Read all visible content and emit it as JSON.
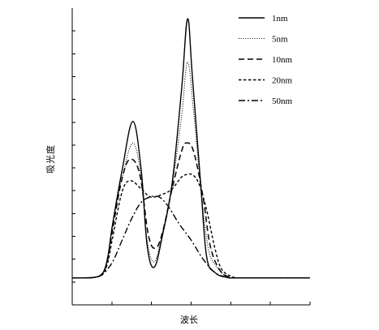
{
  "chart_data": {
    "type": "line",
    "title": "",
    "xlabel": "波长",
    "ylabel": "吸光度",
    "x_ticks_labeled": false,
    "y_ticks_labeled": false,
    "xlim": [
      0,
      1
    ],
    "ylim": [
      -0.1,
      1
    ],
    "grid": false,
    "legend_position": "top-right",
    "series": [
      {
        "name": "1nm",
        "style": "solid",
        "points": [
          [
            0.0,
            0.0
          ],
          [
            0.05,
            0.0
          ],
          [
            0.1,
            0.003
          ],
          [
            0.13,
            0.02
          ],
          [
            0.15,
            0.08
          ],
          [
            0.17,
            0.2
          ],
          [
            0.21,
            0.4
          ],
          [
            0.255,
            0.58
          ],
          [
            0.29,
            0.4
          ],
          [
            0.315,
            0.12
          ],
          [
            0.345,
            0.04
          ],
          [
            0.38,
            0.16
          ],
          [
            0.42,
            0.35
          ],
          [
            0.46,
            0.7
          ],
          [
            0.485,
            0.96
          ],
          [
            0.505,
            0.75
          ],
          [
            0.54,
            0.35
          ],
          [
            0.565,
            0.08
          ],
          [
            0.6,
            0.02
          ],
          [
            0.65,
            0.002
          ],
          [
            0.7,
            0.0
          ],
          [
            1.0,
            0.0
          ]
        ]
      },
      {
        "name": "5nm",
        "style": "dotted",
        "points": [
          [
            0.0,
            0.0
          ],
          [
            0.05,
            0.0
          ],
          [
            0.1,
            0.003
          ],
          [
            0.13,
            0.02
          ],
          [
            0.15,
            0.08
          ],
          [
            0.17,
            0.2
          ],
          [
            0.21,
            0.37
          ],
          [
            0.255,
            0.5
          ],
          [
            0.29,
            0.37
          ],
          [
            0.315,
            0.14
          ],
          [
            0.345,
            0.06
          ],
          [
            0.38,
            0.17
          ],
          [
            0.42,
            0.34
          ],
          [
            0.46,
            0.6
          ],
          [
            0.485,
            0.8
          ],
          [
            0.51,
            0.62
          ],
          [
            0.54,
            0.34
          ],
          [
            0.57,
            0.12
          ],
          [
            0.6,
            0.05
          ],
          [
            0.65,
            0.005
          ],
          [
            0.7,
            0.0
          ],
          [
            1.0,
            0.0
          ]
        ]
      },
      {
        "name": "10nm",
        "style": "dashed",
        "points": [
          [
            0.0,
            0.0
          ],
          [
            0.05,
            0.0
          ],
          [
            0.1,
            0.003
          ],
          [
            0.13,
            0.02
          ],
          [
            0.15,
            0.07
          ],
          [
            0.17,
            0.18
          ],
          [
            0.21,
            0.37
          ],
          [
            0.245,
            0.44
          ],
          [
            0.285,
            0.38
          ],
          [
            0.32,
            0.16
          ],
          [
            0.35,
            0.11
          ],
          [
            0.38,
            0.17
          ],
          [
            0.42,
            0.33
          ],
          [
            0.46,
            0.47
          ],
          [
            0.48,
            0.5
          ],
          [
            0.51,
            0.47
          ],
          [
            0.55,
            0.3
          ],
          [
            0.58,
            0.12
          ],
          [
            0.62,
            0.03
          ],
          [
            0.66,
            0.003
          ],
          [
            0.7,
            0.0
          ],
          [
            1.0,
            0.0
          ]
        ]
      },
      {
        "name": "20nm",
        "style": "short-dashed",
        "points": [
          [
            0.0,
            0.0
          ],
          [
            0.05,
            0.0
          ],
          [
            0.1,
            0.003
          ],
          [
            0.13,
            0.015
          ],
          [
            0.15,
            0.06
          ],
          [
            0.17,
            0.15
          ],
          [
            0.21,
            0.32
          ],
          [
            0.245,
            0.36
          ],
          [
            0.29,
            0.33
          ],
          [
            0.33,
            0.3
          ],
          [
            0.38,
            0.31
          ],
          [
            0.42,
            0.33
          ],
          [
            0.47,
            0.38
          ],
          [
            0.52,
            0.37
          ],
          [
            0.56,
            0.27
          ],
          [
            0.6,
            0.11
          ],
          [
            0.63,
            0.03
          ],
          [
            0.68,
            0.002
          ],
          [
            0.7,
            0.0
          ],
          [
            1.0,
            0.0
          ]
        ]
      },
      {
        "name": "50nm",
        "style": "dash-dot",
        "points": [
          [
            0.0,
            0.0
          ],
          [
            0.05,
            0.0
          ],
          [
            0.1,
            0.003
          ],
          [
            0.13,
            0.015
          ],
          [
            0.17,
            0.06
          ],
          [
            0.21,
            0.14
          ],
          [
            0.25,
            0.22
          ],
          [
            0.29,
            0.28
          ],
          [
            0.33,
            0.3
          ],
          [
            0.365,
            0.3
          ],
          [
            0.4,
            0.27
          ],
          [
            0.45,
            0.2
          ],
          [
            0.5,
            0.14
          ],
          [
            0.55,
            0.07
          ],
          [
            0.6,
            0.02
          ],
          [
            0.65,
            0.003
          ],
          [
            0.7,
            0.0
          ],
          [
            1.0,
            0.0
          ]
        ]
      }
    ]
  }
}
